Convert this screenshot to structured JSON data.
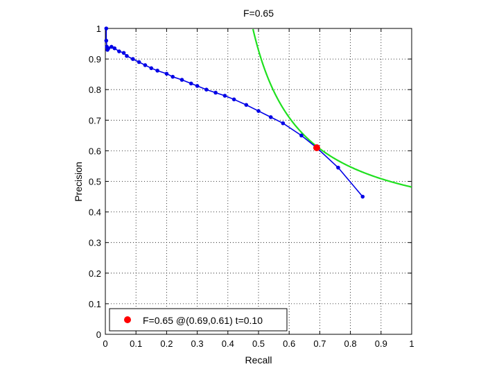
{
  "chart_data": {
    "type": "line",
    "title": "F=0.65",
    "xlabel": "Recall",
    "ylabel": "Precision",
    "xlim": [
      0,
      1
    ],
    "ylim": [
      0,
      1
    ],
    "grid": true,
    "xticks": [
      0,
      0.1,
      0.2,
      0.3,
      0.4,
      0.5,
      0.6,
      0.7,
      0.8,
      0.9,
      1
    ],
    "yticks": [
      0,
      0.1,
      0.2,
      0.3,
      0.4,
      0.5,
      0.6,
      0.7,
      0.8,
      0.9,
      1
    ],
    "xtick_labels": [
      "0",
      "0.1",
      "0.2",
      "0.3",
      "0.4",
      "0.5",
      "0.6",
      "0.7",
      "0.8",
      "0.9",
      "1"
    ],
    "ytick_labels": [
      "0",
      "0.1",
      "0.2",
      "0.3",
      "0.4",
      "0.5",
      "0.6",
      "0.7",
      "0.8",
      "0.9",
      "1"
    ],
    "series": [
      {
        "color": "#0000e6",
        "points": [
          [
            0.003,
            1.0
          ],
          [
            0.003,
            0.96
          ],
          [
            0.005,
            0.94
          ],
          [
            0.007,
            0.93
          ],
          [
            0.01,
            0.935
          ],
          [
            0.02,
            0.94
          ],
          [
            0.03,
            0.935
          ],
          [
            0.045,
            0.925
          ],
          [
            0.06,
            0.92
          ],
          [
            0.07,
            0.91
          ],
          [
            0.09,
            0.9
          ],
          [
            0.11,
            0.89
          ],
          [
            0.13,
            0.88
          ],
          [
            0.15,
            0.87
          ],
          [
            0.17,
            0.862
          ],
          [
            0.2,
            0.852
          ],
          [
            0.22,
            0.842
          ],
          [
            0.25,
            0.832
          ],
          [
            0.28,
            0.82
          ],
          [
            0.3,
            0.812
          ],
          [
            0.33,
            0.8
          ],
          [
            0.36,
            0.79
          ],
          [
            0.39,
            0.78
          ],
          [
            0.42,
            0.768
          ],
          [
            0.46,
            0.75
          ],
          [
            0.5,
            0.73
          ],
          [
            0.54,
            0.71
          ],
          [
            0.58,
            0.69
          ],
          [
            0.64,
            0.65
          ],
          [
            0.69,
            0.61
          ],
          [
            0.76,
            0.545
          ],
          [
            0.84,
            0.45
          ]
        ]
      },
      {
        "color": "#1fe01f",
        "f_iso": 0.65
      }
    ],
    "best_point": {
      "recall": 0.69,
      "precision": 0.61,
      "color": "#ff0000"
    },
    "legend": {
      "entries": [
        "F=0.65 @(0.69,0.61) t=0.10"
      ],
      "placement": "bottom-left"
    }
  }
}
